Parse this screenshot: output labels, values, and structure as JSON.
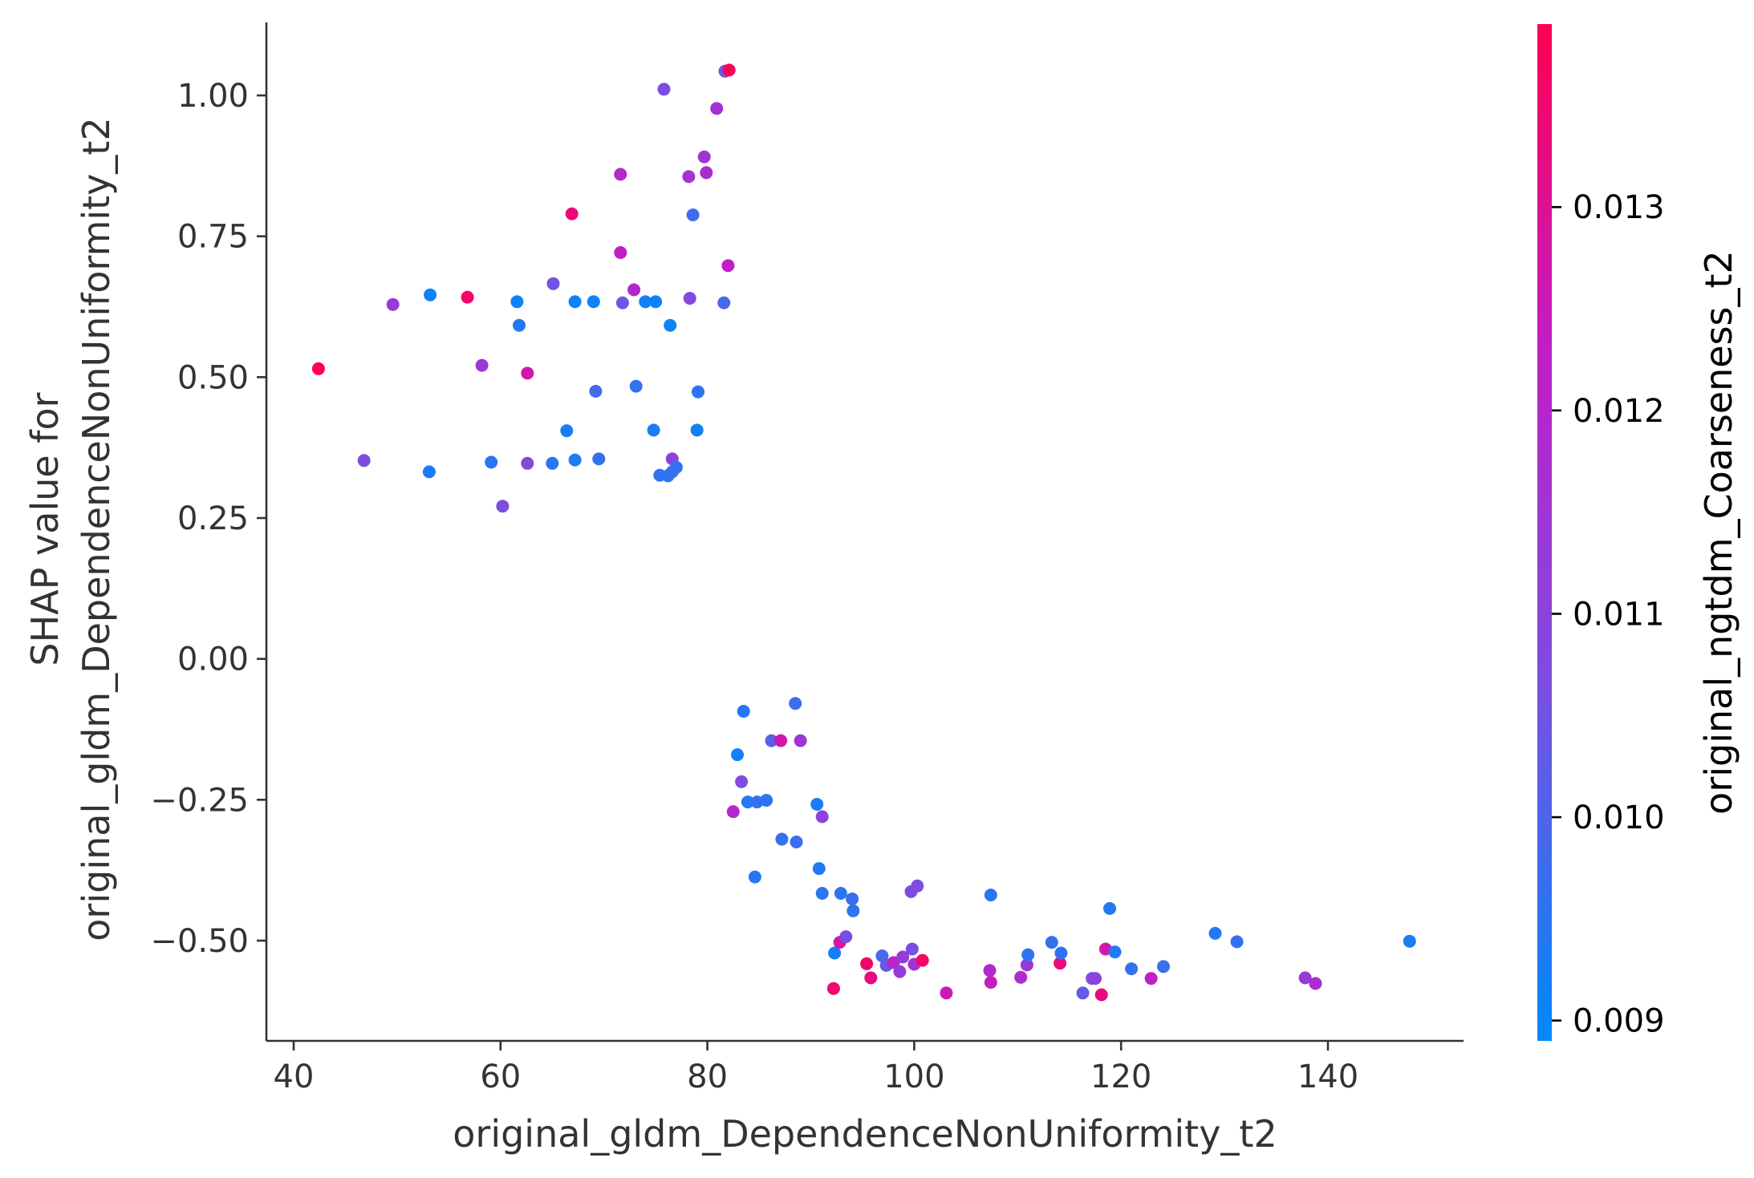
{
  "chart_data": {
    "type": "scatter",
    "xlabel": "original_gldm_DependenceNonUniformity_t2",
    "ylabel_lines": [
      "SHAP value for",
      "original_gldm_DependenceNonUniformity_t2"
    ],
    "xlim": [
      37.5,
      153
    ],
    "ylim": [
      -0.68,
      1.13
    ],
    "x_ticks": [
      40,
      60,
      80,
      100,
      120,
      140
    ],
    "x_tick_labels": [
      "40",
      "60",
      "80",
      "100",
      "120",
      "140"
    ],
    "y_ticks": [
      1.0,
      0.75,
      0.5,
      0.25,
      0.0,
      -0.25,
      -0.5
    ],
    "y_tick_labels": [
      "1.00",
      "0.75",
      "0.50",
      "0.25",
      "0.00",
      "−0.25",
      "−0.50"
    ],
    "grid": false,
    "colorbar": {
      "label": "original_ngtdm_Coarseness_t2",
      "range": [
        0.0089,
        0.0139
      ],
      "ticks": [
        0.013,
        0.012,
        0.011,
        0.01,
        0.009
      ],
      "tick_labels": [
        "0.013",
        "0.012",
        "0.011",
        "0.010",
        "0.009"
      ],
      "colors": [
        "#008afb",
        "#7c4ee0",
        "#c11ec6",
        "#ff0052"
      ]
    },
    "points": [
      [
        42.4,
        0.515,
        0.0139
      ],
      [
        46.8,
        0.352,
        0.0107
      ],
      [
        49.6,
        0.629,
        0.0113
      ],
      [
        53.2,
        0.646,
        0.0091
      ],
      [
        53.1,
        0.332,
        0.0093
      ],
      [
        56.8,
        0.642,
        0.0136
      ],
      [
        58.2,
        0.521,
        0.0114
      ],
      [
        59.1,
        0.349,
        0.0095
      ],
      [
        60.2,
        0.271,
        0.0107
      ],
      [
        61.6,
        0.634,
        0.0091
      ],
      [
        61.8,
        0.592,
        0.0094
      ],
      [
        62.6,
        0.507,
        0.0127
      ],
      [
        62.6,
        0.347,
        0.0109
      ],
      [
        65.1,
        0.666,
        0.0105
      ],
      [
        65.0,
        0.347,
        0.0095
      ],
      [
        66.4,
        0.405,
        0.0093
      ],
      [
        66.9,
        0.79,
        0.0134
      ],
      [
        67.2,
        0.634,
        0.0091
      ],
      [
        67.2,
        0.353,
        0.0093
      ],
      [
        69.0,
        0.634,
        0.0091
      ],
      [
        69.2,
        0.475,
        0.0099
      ],
      [
        69.5,
        0.355,
        0.0096
      ],
      [
        71.6,
        0.86,
        0.012
      ],
      [
        71.6,
        0.721,
        0.0123
      ],
      [
        71.8,
        0.632,
        0.0104
      ],
      [
        72.9,
        0.655,
        0.012
      ],
      [
        73.1,
        0.484,
        0.0096
      ],
      [
        74.0,
        0.634,
        0.0092
      ],
      [
        74.8,
        0.406,
        0.0093
      ],
      [
        75.0,
        0.634,
        0.0091
      ],
      [
        75.4,
        0.326,
        0.0096
      ],
      [
        75.8,
        1.011,
        0.0107
      ],
      [
        76.2,
        0.325,
        0.0094
      ],
      [
        76.4,
        0.592,
        0.0091
      ],
      [
        76.6,
        0.355,
        0.011
      ],
      [
        76.6,
        0.332,
        0.0097
      ],
      [
        77.0,
        0.34,
        0.0096
      ],
      [
        78.2,
        0.856,
        0.0116
      ],
      [
        78.3,
        0.64,
        0.0108
      ],
      [
        78.6,
        0.788,
        0.0098
      ],
      [
        79.0,
        0.406,
        0.0092
      ],
      [
        79.1,
        0.474,
        0.0095
      ],
      [
        79.7,
        0.891,
        0.0115
      ],
      [
        79.9,
        0.863,
        0.0117
      ],
      [
        80.9,
        0.977,
        0.0116
      ],
      [
        81.6,
        0.632,
        0.0099
      ],
      [
        81.7,
        1.043,
        0.0105
      ],
      [
        82.0,
        0.698,
        0.0123
      ],
      [
        82.1,
        1.045,
        0.0138
      ],
      [
        82.5,
        -0.271,
        0.012
      ],
      [
        82.9,
        -0.17,
        0.0092
      ],
      [
        83.3,
        -0.218,
        0.0107
      ],
      [
        83.5,
        -0.093,
        0.0094
      ],
      [
        83.9,
        -0.254,
        0.0094
      ],
      [
        84.6,
        -0.387,
        0.0094
      ],
      [
        84.8,
        -0.254,
        0.0096
      ],
      [
        85.7,
        -0.251,
        0.0096
      ],
      [
        86.2,
        -0.145,
        0.0101
      ],
      [
        87.1,
        -0.145,
        0.0127
      ],
      [
        87.2,
        -0.32,
        0.0096
      ],
      [
        88.5,
        -0.079,
        0.0097
      ],
      [
        88.6,
        -0.325,
        0.0097
      ],
      [
        89.0,
        -0.145,
        0.0115
      ],
      [
        90.6,
        -0.258,
        0.0093
      ],
      [
        90.8,
        -0.372,
        0.0094
      ],
      [
        91.1,
        -0.28,
        0.011
      ],
      [
        91.1,
        -0.416,
        0.0095
      ],
      [
        92.3,
        -0.522,
        0.0092
      ],
      [
        92.2,
        -0.585,
        0.0135
      ],
      [
        92.8,
        -0.503,
        0.0127
      ],
      [
        92.9,
        -0.416,
        0.0095
      ],
      [
        93.4,
        -0.493,
        0.0106
      ],
      [
        94.0,
        -0.426,
        0.0097
      ],
      [
        94.1,
        -0.447,
        0.0096
      ],
      [
        95.4,
        -0.541,
        0.0136
      ],
      [
        95.8,
        -0.566,
        0.0133
      ],
      [
        96.9,
        -0.527,
        0.0099
      ],
      [
        97.3,
        -0.544,
        0.0104
      ],
      [
        98.0,
        -0.539,
        0.0121
      ],
      [
        98.6,
        -0.555,
        0.0112
      ],
      [
        98.9,
        -0.529,
        0.0113
      ],
      [
        99.7,
        -0.413,
        0.0107
      ],
      [
        99.8,
        -0.515,
        0.0106
      ],
      [
        100.0,
        -0.542,
        0.0116
      ],
      [
        100.3,
        -0.403,
        0.0107
      ],
      [
        100.8,
        -0.535,
        0.0136
      ],
      [
        103.1,
        -0.593,
        0.0125
      ],
      [
        107.3,
        -0.553,
        0.0119
      ],
      [
        107.4,
        -0.574,
        0.0124
      ],
      [
        107.4,
        -0.419,
        0.0095
      ],
      [
        110.3,
        -0.565,
        0.0119
      ],
      [
        110.9,
        -0.543,
        0.0114
      ],
      [
        111.0,
        -0.525,
        0.0095
      ],
      [
        113.3,
        -0.503,
        0.0097
      ],
      [
        114.1,
        -0.54,
        0.0133
      ],
      [
        114.2,
        -0.522,
        0.0096
      ],
      [
        116.3,
        -0.593,
        0.0103
      ],
      [
        117.2,
        -0.567,
        0.0107
      ],
      [
        117.5,
        -0.567,
        0.011
      ],
      [
        118.1,
        -0.596,
        0.0133
      ],
      [
        118.5,
        -0.515,
        0.0127
      ],
      [
        118.9,
        -0.443,
        0.0094
      ],
      [
        119.4,
        -0.52,
        0.0094
      ],
      [
        121.0,
        -0.55,
        0.0096
      ],
      [
        122.9,
        -0.567,
        0.0122
      ],
      [
        124.1,
        -0.546,
        0.0097
      ],
      [
        129.1,
        -0.487,
        0.0094
      ],
      [
        131.2,
        -0.502,
        0.0096
      ],
      [
        137.8,
        -0.566,
        0.0113
      ],
      [
        138.8,
        -0.576,
        0.0118
      ],
      [
        147.9,
        -0.501,
        0.0093
      ]
    ]
  }
}
